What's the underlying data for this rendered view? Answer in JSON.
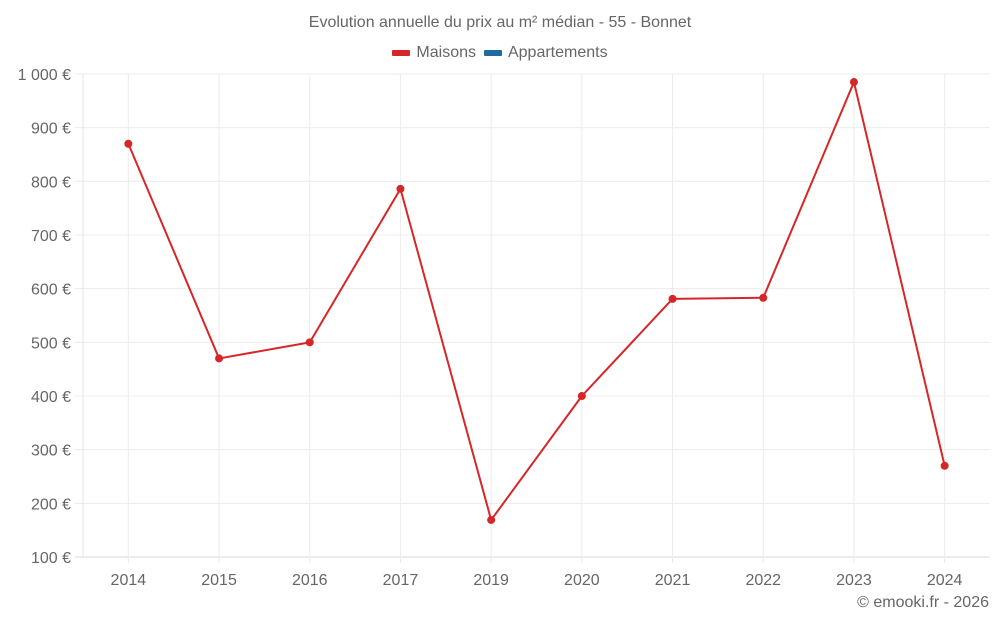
{
  "chart_data": {
    "type": "line",
    "title": "Evolution annuelle du prix au m² médian - 55 - Bonnet",
    "xlabel": "",
    "ylabel": "",
    "categories": [
      "2014",
      "2015",
      "2016",
      "2017",
      "2019",
      "2020",
      "2021",
      "2022",
      "2023",
      "2024"
    ],
    "series": [
      {
        "name": "Maisons",
        "color": "#d62728",
        "values": [
          870,
          470,
          500,
          786,
          169,
          400,
          581,
          583,
          985,
          270
        ]
      },
      {
        "name": "Appartements",
        "color": "#1f6a9e",
        "values": []
      }
    ],
    "ylim": [
      100,
      1000
    ],
    "yticks": [
      100,
      200,
      300,
      400,
      500,
      600,
      700,
      800,
      900,
      1000
    ],
    "ytick_labels": [
      "100 €",
      "200 €",
      "300 €",
      "400 €",
      "500 €",
      "600 €",
      "700 €",
      "800 €",
      "900 €",
      "1 000 €"
    ],
    "grid": true,
    "legend_position": "top"
  },
  "legend": {
    "items": [
      {
        "label": "Maisons",
        "color": "#d62728"
      },
      {
        "label": "Appartements",
        "color": "#1f6a9e"
      }
    ]
  },
  "credit": "© emooki.fr - 2026"
}
